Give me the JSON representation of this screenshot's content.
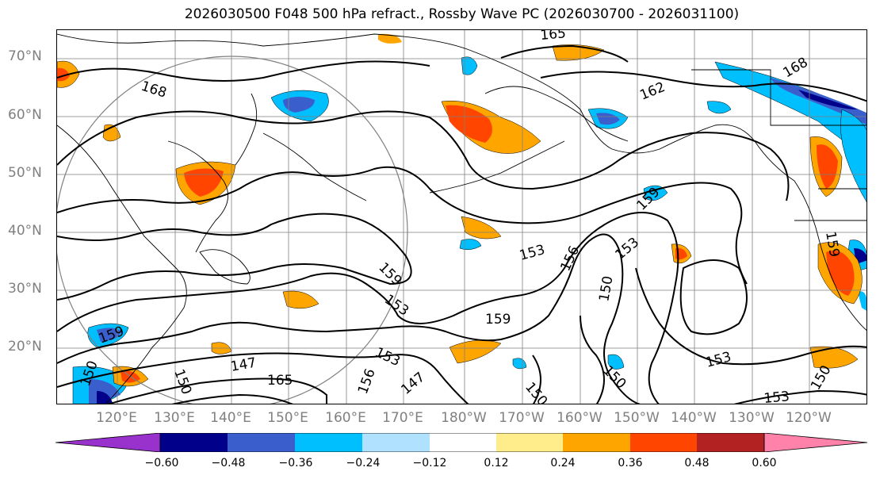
{
  "title": "2026030500 F048 500 hPa refract., Rossby Wave PC (2026030700 - 2026031100)",
  "lat_labels": [
    "70°N",
    "60°N",
    "50°N",
    "40°N",
    "30°N",
    "20°N"
  ],
  "lon_labels": [
    "120°E",
    "130°E",
    "140°E",
    "150°E",
    "160°E",
    "170°E",
    "180°W",
    "170°W",
    "160°W",
    "150°W",
    "140°W",
    "130°W",
    "120°W"
  ],
  "colorbar": {
    "ticks": [
      "−0.60",
      "−0.48",
      "−0.36",
      "−0.24",
      "−0.12",
      "0.12",
      "0.24",
      "0.36",
      "0.48",
      "0.60"
    ],
    "colors": [
      "#9932cc",
      "#00008b",
      "#3a5fcd",
      "#00bfff",
      "#b0e2ff",
      "#ffffff",
      "#ffec8b",
      "#ffa500",
      "#ff4500",
      "#b22222",
      "#ff82ab"
    ]
  },
  "contour_labels": [
    "165",
    "168",
    "162",
    "168",
    "159",
    "153",
    "150",
    "159",
    "156",
    "153",
    "147",
    "165",
    "156",
    "153",
    "150",
    "159",
    "153",
    "150",
    "150",
    "159",
    "147",
    "153",
    "159",
    "150",
    "153",
    "150"
  ]
}
